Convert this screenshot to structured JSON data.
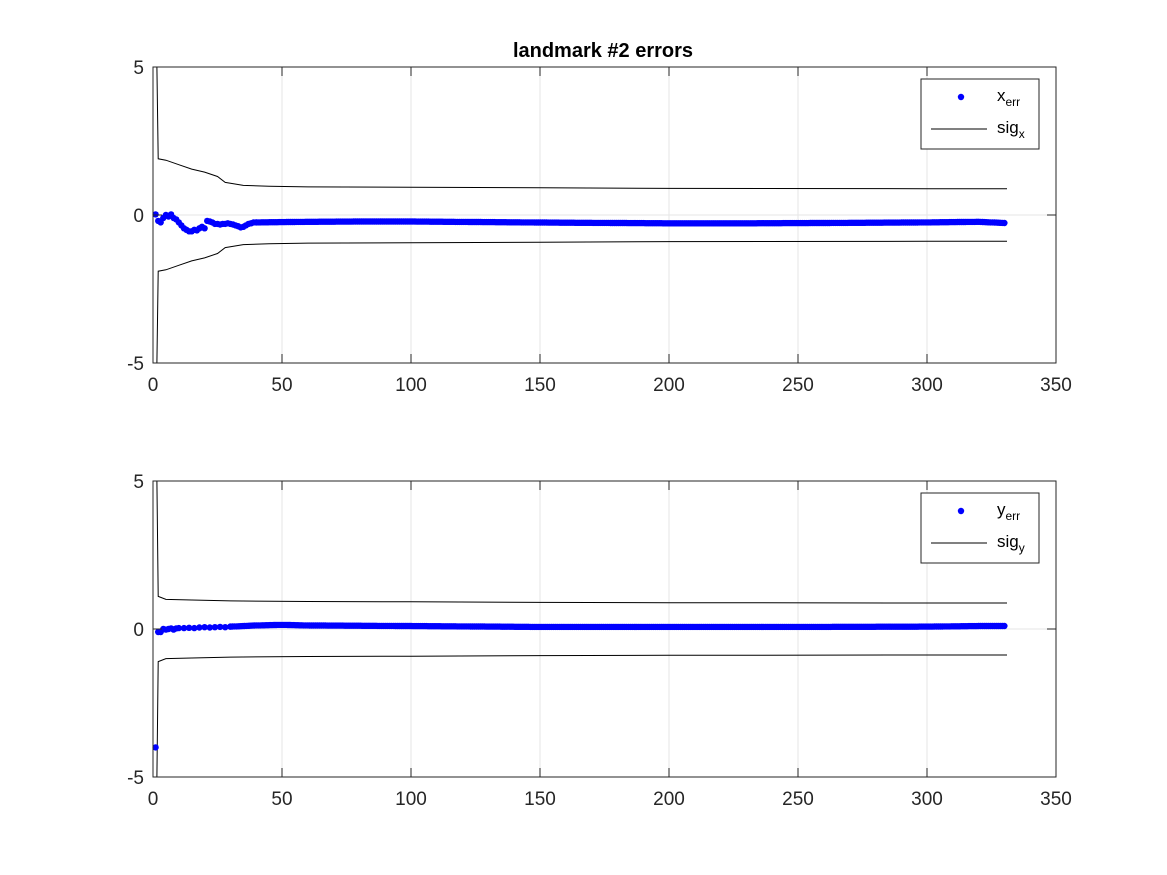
{
  "figure_title": "landmark #2 errors",
  "chart_data": [
    {
      "type": "scatter",
      "title": "landmark #2 errors",
      "xlabel": "",
      "ylabel": "",
      "xlim": [
        0,
        350
      ],
      "ylim": [
        -5,
        5
      ],
      "xticks": [
        0,
        50,
        100,
        150,
        200,
        250,
        300,
        350
      ],
      "yticks": [
        -5,
        0,
        5
      ],
      "grid": true,
      "legend_position": "top-right",
      "legend": [
        {
          "base": "x",
          "sub": "err",
          "kind": "marker",
          "color": "#0000ff"
        },
        {
          "base": "sig",
          "sub": "x",
          "kind": "line",
          "color": "#000000"
        }
      ],
      "error_series": {
        "name": "x_err",
        "color": "#0000ff",
        "points": [
          [
            1,
            0.02
          ],
          [
            2,
            -0.2
          ],
          [
            3,
            -0.25
          ],
          [
            4,
            -0.1
          ],
          [
            5,
            0.0
          ],
          [
            6,
            -0.05
          ],
          [
            7,
            0.02
          ],
          [
            8,
            -0.1
          ],
          [
            9,
            -0.15
          ],
          [
            10,
            -0.25
          ],
          [
            11,
            -0.35
          ],
          [
            12,
            -0.45
          ],
          [
            13,
            -0.5
          ],
          [
            14,
            -0.55
          ],
          [
            15,
            -0.55
          ],
          [
            16,
            -0.5
          ],
          [
            17,
            -0.52
          ],
          [
            18,
            -0.45
          ],
          [
            19,
            -0.4
          ],
          [
            20,
            -0.45
          ],
          [
            21,
            -0.2
          ],
          [
            22,
            -0.22
          ],
          [
            23,
            -0.25
          ],
          [
            24,
            -0.3
          ],
          [
            25,
            -0.3
          ],
          [
            26,
            -0.32
          ],
          [
            27,
            -0.3
          ],
          [
            28,
            -0.3
          ],
          [
            29,
            -0.28
          ],
          [
            30,
            -0.3
          ],
          [
            31,
            -0.32
          ],
          [
            32,
            -0.35
          ],
          [
            33,
            -0.38
          ],
          [
            34,
            -0.42
          ],
          [
            35,
            -0.4
          ],
          [
            36,
            -0.35
          ],
          [
            37,
            -0.3
          ],
          [
            38,
            -0.28
          ],
          [
            39,
            -0.25
          ],
          [
            40,
            -0.25
          ]
        ],
        "trend": [
          [
            40,
            -0.25
          ],
          [
            60,
            -0.23
          ],
          [
            80,
            -0.22
          ],
          [
            100,
            -0.22
          ],
          [
            130,
            -0.24
          ],
          [
            160,
            -0.26
          ],
          [
            200,
            -0.28
          ],
          [
            230,
            -0.28
          ],
          [
            260,
            -0.27
          ],
          [
            300,
            -0.25
          ],
          [
            320,
            -0.23
          ],
          [
            330,
            -0.27
          ]
        ]
      },
      "sigma_series": {
        "name": "sig_x",
        "color": "#000000",
        "upper": [
          [
            1,
            5
          ],
          [
            1.5,
            5
          ],
          [
            2,
            1.9
          ],
          [
            5,
            1.85
          ],
          [
            10,
            1.7
          ],
          [
            15,
            1.55
          ],
          [
            20,
            1.45
          ],
          [
            25,
            1.3
          ],
          [
            28,
            1.1
          ],
          [
            35,
            1.0
          ],
          [
            45,
            0.97
          ],
          [
            60,
            0.95
          ],
          [
            100,
            0.94
          ],
          [
            150,
            0.92
          ],
          [
            200,
            0.9
          ],
          [
            300,
            0.89
          ],
          [
            331,
            0.89
          ]
        ],
        "lower": [
          [
            1,
            -5
          ],
          [
            1.5,
            -5
          ],
          [
            2,
            -1.9
          ],
          [
            5,
            -1.85
          ],
          [
            10,
            -1.7
          ],
          [
            15,
            -1.55
          ],
          [
            20,
            -1.45
          ],
          [
            25,
            -1.3
          ],
          [
            28,
            -1.1
          ],
          [
            35,
            -1.0
          ],
          [
            45,
            -0.97
          ],
          [
            60,
            -0.95
          ],
          [
            100,
            -0.94
          ],
          [
            150,
            -0.92
          ],
          [
            200,
            -0.9
          ],
          [
            300,
            -0.89
          ],
          [
            331,
            -0.89
          ]
        ]
      }
    },
    {
      "type": "scatter",
      "title": "",
      "xlabel": "",
      "ylabel": "",
      "xlim": [
        0,
        350
      ],
      "ylim": [
        -5,
        5
      ],
      "xticks": [
        0,
        50,
        100,
        150,
        200,
        250,
        300,
        350
      ],
      "yticks": [
        -5,
        0,
        5
      ],
      "grid": true,
      "legend_position": "top-right",
      "legend": [
        {
          "base": "y",
          "sub": "err",
          "kind": "marker",
          "color": "#0000ff"
        },
        {
          "base": "sig",
          "sub": "y",
          "kind": "line",
          "color": "#000000"
        }
      ],
      "error_series": {
        "name": "y_err",
        "color": "#0000ff",
        "points": [
          [
            1,
            -4.0
          ],
          [
            2,
            -0.1
          ],
          [
            3,
            -0.1
          ],
          [
            4,
            0.0
          ],
          [
            5,
            -0.02
          ],
          [
            6,
            0.0
          ],
          [
            7,
            0.02
          ],
          [
            8,
            -0.02
          ],
          [
            9,
            0.02
          ],
          [
            10,
            0.03
          ],
          [
            12,
            0.03
          ],
          [
            14,
            0.04
          ],
          [
            16,
            0.03
          ],
          [
            18,
            0.05
          ],
          [
            20,
            0.06
          ],
          [
            22,
            0.05
          ],
          [
            24,
            0.06
          ],
          [
            26,
            0.07
          ],
          [
            28,
            0.06
          ],
          [
            30,
            0.08
          ]
        ],
        "trend": [
          [
            30,
            0.08
          ],
          [
            40,
            0.12
          ],
          [
            50,
            0.14
          ],
          [
            60,
            0.12
          ],
          [
            100,
            0.1
          ],
          [
            150,
            0.07
          ],
          [
            200,
            0.07
          ],
          [
            250,
            0.07
          ],
          [
            300,
            0.08
          ],
          [
            320,
            0.1
          ],
          [
            330,
            0.1
          ]
        ]
      },
      "sigma_series": {
        "name": "sig_y",
        "color": "#000000",
        "upper": [
          [
            1,
            5
          ],
          [
            1.5,
            5
          ],
          [
            2,
            1.1
          ],
          [
            5,
            1.0
          ],
          [
            15,
            0.98
          ],
          [
            30,
            0.95
          ],
          [
            60,
            0.93
          ],
          [
            100,
            0.92
          ],
          [
            150,
            0.9
          ],
          [
            200,
            0.89
          ],
          [
            300,
            0.88
          ],
          [
            331,
            0.88
          ]
        ],
        "lower": [
          [
            1,
            -5
          ],
          [
            1.5,
            -5
          ],
          [
            2,
            -1.1
          ],
          [
            5,
            -1.0
          ],
          [
            15,
            -0.98
          ],
          [
            30,
            -0.95
          ],
          [
            60,
            -0.93
          ],
          [
            100,
            -0.92
          ],
          [
            150,
            -0.9
          ],
          [
            200,
            -0.89
          ],
          [
            300,
            -0.88
          ],
          [
            331,
            -0.88
          ]
        ]
      }
    }
  ]
}
